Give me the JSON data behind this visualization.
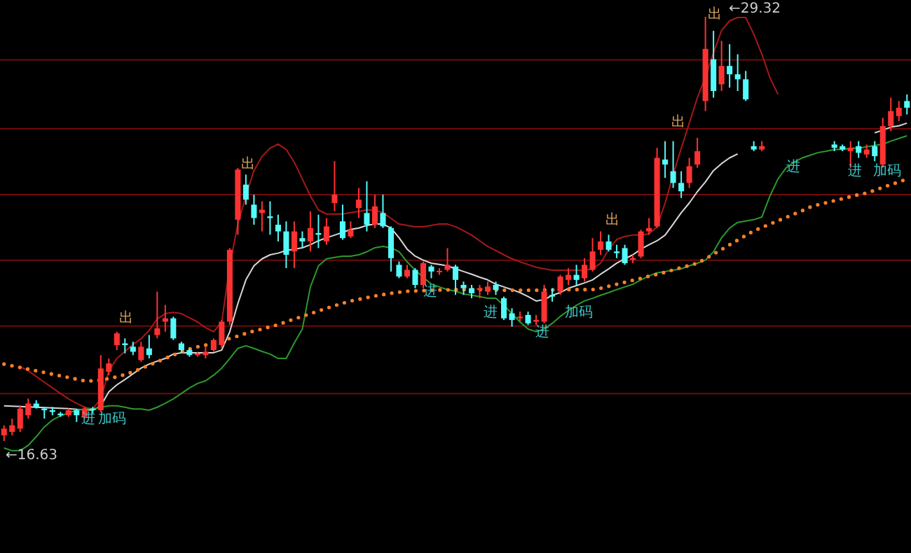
{
  "chart_data": {
    "type": "candlestick",
    "categories": [
      null,
      null,
      null,
      null,
      null,
      null,
      null,
      null,
      null,
      null,
      null,
      null,
      null,
      null,
      null,
      null,
      null,
      null,
      null,
      null,
      null,
      null,
      null,
      null,
      null,
      null,
      null,
      null,
      null,
      null,
      null,
      null,
      null,
      null,
      null,
      null,
      null,
      null,
      null,
      null,
      null,
      null,
      null,
      null,
      null,
      null,
      null,
      null,
      null,
      null,
      null,
      null,
      null,
      null,
      null,
      null,
      null,
      null,
      null,
      null,
      null,
      null,
      null,
      null,
      null,
      null,
      null,
      null,
      null,
      null,
      null,
      null,
      null,
      null,
      null,
      null,
      null,
      null,
      null,
      null,
      null,
      null,
      null,
      null,
      null,
      null,
      null,
      null,
      null,
      null,
      null,
      null,
      null,
      null,
      null,
      null,
      null,
      null,
      null,
      null,
      null,
      null,
      null,
      null,
      null,
      null,
      null,
      null,
      null,
      null,
      null,
      null,
      null
    ],
    "colors": [
      "#ff3232",
      "#ff3232",
      "#ff3232",
      "#ff3232",
      "#54fcfc",
      "#54fcfc",
      "#54fcfc",
      "#54fcfc",
      "#ff3232",
      "#54fcfc",
      "#ff3232",
      "#54fcfc",
      "#ff3232",
      "#ff3232",
      "#ff3232",
      "#54fcfc",
      "#54fcfc",
      "#ff3232",
      "#54fcfc",
      "#ff3232",
      "#ff3232",
      "#54fcfc",
      "#54fcfc",
      "#54fcfc",
      "#ff3232",
      "#ff3232",
      "#ff3232",
      "#ff3232",
      "#ff3232",
      "#ff3232",
      "#54fcfc",
      "#54fcfc",
      "#ff3232",
      "#54fcfc",
      "#54fcfc",
      "#54fcfc",
      "#ff3232",
      "#54fcfc",
      "#ff3232",
      "#54fcfc",
      "#ff3232",
      "#ff3232",
      "#54fcfc",
      "#ff3232",
      "#ff3232",
      "#54fcfc",
      "#ff3232",
      "#54fcfc",
      "#54fcfc",
      "#54fcfc",
      "#ff3232",
      "#54fcfc",
      "#ff3232",
      "#54fcfc",
      "#ff3232",
      "#ff3232",
      "#54fcfc",
      "#54fcfc",
      "#54fcfc",
      "#ff3232",
      "#ff3232",
      "#54fcfc",
      "#54fcfc",
      "#54fcfc",
      "#ff3232",
      "#54fcfc",
      "#ff3232",
      "#ff3232",
      "#54fcfc",
      "#ff3232",
      "#ff3232",
      "#54fcfc",
      "#ff3232",
      "#ff3232",
      "#ff3232",
      "#54fcfc",
      "#54fcfc",
      "#54fcfc",
      "#ff3232",
      "#ff3232",
      "#ff3232",
      "#ff3232",
      "#54fcfc",
      "#54fcfc",
      "#54fcfc",
      "#ff3232",
      "#ff3232",
      "#ff3232",
      "#54fcfc",
      "#ff3232",
      "#54fcfc",
      "#54fcfc",
      "#54fcfc",
      "#54fcfc",
      "#ff3232",
      null,
      null,
      null,
      null,
      null,
      null,
      null,
      null,
      "#54fcfc",
      "#54fcfc",
      "#ff3232",
      "#54fcfc",
      "#ff3232",
      "#54fcfc",
      "#ff3232",
      "#ff3232",
      "#ff3232",
      "#54fcfc"
    ],
    "ohlc": [
      [
        16.8,
        17.1,
        16.63,
        17.0
      ],
      [
        16.9,
        17.3,
        16.8,
        17.1
      ],
      [
        17.0,
        17.7,
        16.9,
        17.6
      ],
      [
        17.4,
        17.9,
        17.3,
        17.75
      ],
      [
        17.75,
        17.85,
        17.6,
        17.65
      ],
      [
        17.6,
        17.65,
        17.3,
        17.55
      ],
      [
        17.55,
        17.65,
        17.4,
        17.5
      ],
      [
        17.45,
        17.5,
        17.35,
        17.4
      ],
      [
        17.4,
        17.6,
        17.35,
        17.55
      ],
      [
        17.55,
        17.6,
        17.2,
        17.4
      ],
      [
        17.35,
        17.65,
        17.3,
        17.6
      ],
      [
        17.6,
        17.65,
        17.45,
        17.55
      ],
      [
        17.55,
        19.2,
        17.5,
        18.8
      ],
      [
        18.7,
        19.1,
        18.6,
        18.95
      ],
      [
        19.5,
        19.9,
        19.35,
        19.85
      ],
      [
        19.55,
        19.7,
        19.25,
        19.5
      ],
      [
        19.45,
        19.6,
        19.2,
        19.3
      ],
      [
        19.05,
        19.6,
        19.0,
        19.45
      ],
      [
        19.4,
        19.8,
        19.1,
        19.2
      ],
      [
        19.8,
        21.1,
        19.7,
        20.0
      ],
      [
        20.2,
        20.7,
        19.9,
        20.3
      ],
      [
        20.3,
        20.35,
        19.65,
        19.7
      ],
      [
        19.55,
        19.6,
        19.25,
        19.35
      ],
      [
        19.35,
        19.4,
        19.15,
        19.2
      ],
      [
        19.2,
        19.3,
        19.15,
        19.25
      ],
      [
        19.2,
        19.45,
        19.1,
        19.3
      ],
      [
        19.35,
        19.7,
        19.3,
        19.65
      ],
      [
        19.5,
        20.25,
        19.4,
        20.2
      ],
      [
        20.2,
        22.4,
        20.1,
        22.35
      ],
      [
        23.25,
        24.8,
        22.8,
        24.75
      ],
      [
        24.3,
        24.6,
        23.7,
        23.85
      ],
      [
        23.7,
        24.0,
        23.1,
        23.3
      ],
      [
        23.45,
        23.8,
        22.9,
        23.55
      ],
      [
        23.35,
        23.8,
        22.8,
        23.3
      ],
      [
        23.1,
        23.4,
        22.6,
        22.9
      ],
      [
        22.9,
        23.2,
        21.8,
        22.2
      ],
      [
        22.3,
        23.2,
        21.8,
        22.9
      ],
      [
        22.7,
        22.9,
        22.4,
        22.6
      ],
      [
        22.6,
        23.5,
        22.3,
        23.0
      ],
      [
        22.85,
        23.4,
        22.4,
        22.8
      ],
      [
        22.6,
        23.3,
        22.5,
        23.05
      ],
      [
        23.75,
        25.0,
        23.5,
        24.0
      ],
      [
        23.2,
        23.7,
        22.65,
        22.7
      ],
      [
        22.75,
        23.2,
        22.7,
        22.95
      ],
      [
        23.6,
        24.2,
        23.3,
        23.85
      ],
      [
        23.45,
        24.4,
        22.9,
        23.1
      ],
      [
        23.1,
        24.0,
        23.0,
        23.65
      ],
      [
        23.45,
        24.0,
        23.0,
        23.05
      ],
      [
        23.0,
        23.05,
        21.7,
        22.1
      ],
      [
        21.9,
        22.0,
        21.5,
        21.55
      ],
      [
        21.55,
        21.9,
        21.5,
        21.75
      ],
      [
        21.75,
        21.8,
        21.2,
        21.3
      ],
      [
        21.3,
        22.0,
        21.2,
        21.95
      ],
      [
        21.85,
        21.9,
        21.5,
        21.7
      ],
      [
        21.7,
        21.8,
        21.6,
        21.72
      ],
      [
        21.75,
        22.4,
        21.7,
        21.9
      ],
      [
        21.85,
        21.9,
        21.0,
        21.45
      ],
      [
        21.3,
        21.4,
        21.0,
        21.2
      ],
      [
        21.2,
        21.3,
        20.9,
        21.05
      ],
      [
        21.15,
        21.3,
        20.9,
        21.2
      ],
      [
        21.1,
        21.4,
        21.0,
        21.25
      ],
      [
        21.3,
        21.4,
        21.0,
        21.15
      ],
      [
        20.9,
        20.95,
        20.25,
        20.3
      ],
      [
        20.45,
        20.6,
        20.05,
        20.25
      ],
      [
        20.3,
        20.5,
        20.2,
        20.35
      ],
      [
        20.4,
        20.5,
        20.1,
        20.15
      ],
      [
        20.2,
        20.4,
        20.1,
        20.25
      ],
      [
        20.2,
        21.3,
        20.15,
        21.1
      ],
      [
        21.0,
        21.2,
        20.8,
        20.95
      ],
      [
        21.1,
        21.6,
        21.0,
        21.55
      ],
      [
        21.45,
        21.8,
        21.3,
        21.6
      ],
      [
        21.6,
        21.9,
        21.3,
        21.45
      ],
      [
        21.5,
        22.1,
        21.4,
        21.9
      ],
      [
        21.75,
        22.7,
        21.7,
        22.3
      ],
      [
        22.35,
        22.9,
        22.2,
        22.6
      ],
      [
        22.6,
        22.8,
        22.3,
        22.35
      ],
      [
        22.3,
        22.5,
        22.1,
        22.25
      ],
      [
        22.4,
        22.5,
        21.9,
        21.95
      ],
      [
        22.05,
        22.2,
        21.95,
        22.1
      ],
      [
        22.15,
        22.95,
        22.1,
        22.9
      ],
      [
        22.9,
        23.3,
        22.8,
        23.0
      ],
      [
        23.05,
        25.4,
        23.0,
        25.1
      ],
      [
        25.05,
        25.6,
        24.5,
        24.9
      ],
      [
        24.7,
        25.6,
        24.2,
        24.35
      ],
      [
        24.35,
        24.7,
        23.9,
        24.1
      ],
      [
        24.35,
        25.1,
        24.2,
        24.85
      ],
      [
        24.9,
        25.7,
        24.8,
        25.3
      ],
      [
        26.8,
        29.32,
        26.5,
        28.36
      ],
      [
        28.05,
        28.9,
        26.9,
        27.1
      ],
      [
        27.3,
        28.6,
        27.1,
        27.85
      ],
      [
        27.85,
        28.5,
        27.2,
        27.6
      ],
      [
        27.6,
        28.2,
        27.1,
        27.45
      ],
      [
        27.45,
        27.7,
        26.8,
        26.85
      ],
      [
        25.45,
        25.6,
        25.3,
        25.35
      ],
      [
        25.35,
        25.6,
        25.3,
        25.45
      ],
      null,
      null,
      null,
      null,
      null,
      null,
      null,
      null,
      [
        25.5,
        25.6,
        25.3,
        25.4
      ],
      [
        25.45,
        25.5,
        25.3,
        25.35
      ],
      [
        25.3,
        25.6,
        24.8,
        25.4
      ],
      [
        25.45,
        25.6,
        25.1,
        25.25
      ],
      [
        25.2,
        25.5,
        25.1,
        25.35
      ],
      [
        25.45,
        25.6,
        25.0,
        25.15
      ],
      [
        24.9,
        26.3,
        24.8,
        26.05
      ],
      [
        26.05,
        26.9,
        25.9,
        26.5
      ],
      [
        26.35,
        26.8,
        26.2,
        26.6
      ],
      [
        26.8,
        27.0,
        26.4,
        26.6
      ]
    ],
    "series": [
      {
        "type": "line",
        "color": "#d8d8d8",
        "values": [
          17.68,
          17.67,
          17.66,
          17.65,
          17.64,
          17.63,
          17.62,
          17.61,
          17.6,
          17.58,
          17.57,
          17.55,
          17.68,
          18.1,
          18.31,
          18.47,
          18.64,
          18.81,
          18.93,
          19.02,
          19.1,
          19.23,
          19.27,
          19.27,
          19.27,
          19.27,
          19.27,
          19.35,
          19.9,
          20.74,
          21.45,
          21.87,
          22.08,
          22.2,
          22.25,
          22.33,
          22.37,
          22.41,
          22.5,
          22.62,
          22.71,
          22.79,
          22.87,
          22.96,
          23.0,
          23.08,
          23.12,
          23.12,
          23.0,
          22.71,
          22.37,
          22.16,
          22.04,
          21.95,
          21.91,
          21.87,
          21.78,
          21.7,
          21.62,
          21.53,
          21.45,
          21.32,
          21.24,
          21.16,
          21.07,
          20.95,
          20.82,
          20.86,
          20.99,
          21.07,
          21.2,
          21.28,
          21.36,
          21.45,
          21.62,
          21.78,
          21.95,
          22.08,
          22.2,
          22.37,
          22.5,
          22.62,
          22.79,
          23.12,
          23.46,
          23.75,
          24.09,
          24.38,
          24.72,
          24.93,
          25.1,
          25.22,
          null,
          null,
          null,
          null,
          null,
          null,
          null,
          null,
          null,
          null,
          null,
          null,
          null,
          null,
          null,
          null,
          25.85,
          25.93,
          26.02,
          26.06,
          26.14
        ]
      },
      {
        "type": "line",
        "color": "#a81818",
        "values": [
          null,
          null,
          18.85,
          18.73,
          18.56,
          18.39,
          18.22,
          18.05,
          17.89,
          17.76,
          17.64,
          17.59,
          17.89,
          18.73,
          19.1,
          19.31,
          19.52,
          19.69,
          19.94,
          20.28,
          20.44,
          20.48,
          20.44,
          20.32,
          20.19,
          20.02,
          19.9,
          20.19,
          21.87,
          23.12,
          23.96,
          24.72,
          25.14,
          25.39,
          25.51,
          25.35,
          24.97,
          24.47,
          23.96,
          23.54,
          23.42,
          23.42,
          23.42,
          23.46,
          23.5,
          23.54,
          23.54,
          23.46,
          23.29,
          23.12,
          23.08,
          23.04,
          23.04,
          23.08,
          23.12,
          23.12,
          23.04,
          22.92,
          22.79,
          22.62,
          22.45,
          22.33,
          22.2,
          22.08,
          21.99,
          21.91,
          21.83,
          21.78,
          21.74,
          21.74,
          21.74,
          21.74,
          21.74,
          21.78,
          21.95,
          22.37,
          22.66,
          22.75,
          22.79,
          22.79,
          22.83,
          23.04,
          23.75,
          24.59,
          25.39,
          26.14,
          26.9,
          27.52,
          28.24,
          28.91,
          29.2,
          29.3,
          29.3,
          28.8,
          28.2,
          27.5,
          27.0,
          null,
          null,
          null,
          null,
          null,
          null,
          null,
          null,
          null,
          null,
          null,
          null,
          null,
          null,
          null,
          null
        ]
      },
      {
        "type": "line",
        "color": "#2c9a2c",
        "values": [
          16.42,
          16.34,
          16.34,
          16.5,
          16.76,
          17.05,
          17.26,
          17.38,
          17.47,
          17.55,
          17.59,
          17.59,
          17.64,
          17.68,
          17.68,
          17.64,
          17.59,
          17.59,
          17.55,
          17.64,
          17.76,
          17.89,
          18.05,
          18.22,
          18.35,
          18.43,
          18.6,
          18.81,
          19.1,
          19.4,
          19.48,
          19.4,
          19.31,
          19.23,
          19.1,
          19.1,
          19.56,
          19.98,
          21.24,
          21.87,
          22.08,
          22.12,
          22.16,
          22.16,
          22.2,
          22.29,
          22.41,
          22.45,
          22.41,
          22.29,
          21.99,
          21.74,
          21.53,
          21.32,
          21.24,
          21.16,
          21.11,
          21.03,
          20.99,
          20.95,
          20.9,
          20.9,
          20.69,
          20.44,
          20.19,
          19.98,
          19.9,
          19.98,
          20.15,
          20.36,
          20.53,
          20.69,
          20.82,
          20.9,
          20.99,
          21.07,
          21.16,
          21.24,
          21.32,
          21.45,
          21.57,
          21.66,
          21.7,
          21.74,
          21.78,
          21.87,
          21.95,
          22.04,
          22.29,
          22.71,
          23.0,
          23.17,
          23.21,
          23.25,
          23.33,
          23.96,
          24.47,
          24.8,
          24.97,
          25.1,
          25.18,
          25.26,
          25.3,
          25.35,
          25.35,
          25.39,
          25.39,
          25.43,
          25.47,
          25.51,
          25.6,
          25.68,
          25.76
        ]
      },
      {
        "type": "line",
        "color": "#ff7f27",
        "line_style": "dotted",
        "values": [
          18.93,
          18.88,
          18.83,
          18.78,
          18.73,
          18.68,
          18.63,
          18.58,
          18.53,
          18.48,
          18.43,
          18.43,
          18.45,
          18.5,
          18.55,
          18.62,
          18.7,
          18.8,
          18.9,
          19.0,
          19.1,
          19.2,
          19.3,
          19.38,
          19.45,
          19.5,
          19.55,
          19.62,
          19.7,
          19.77,
          19.85,
          19.92,
          19.98,
          20.05,
          20.11,
          20.2,
          20.28,
          20.36,
          20.44,
          20.52,
          20.6,
          20.68,
          20.75,
          20.82,
          20.87,
          20.92,
          20.97,
          21.01,
          21.05,
          21.08,
          21.11,
          21.12,
          21.13,
          21.14,
          21.15,
          21.15,
          21.16,
          21.16,
          21.16,
          21.16,
          21.15,
          21.15,
          21.14,
          21.14,
          21.14,
          21.14,
          21.14,
          21.15,
          21.15,
          21.15,
          21.16,
          21.16,
          21.16,
          21.16,
          21.2,
          21.26,
          21.32,
          21.38,
          21.44,
          21.5,
          21.56,
          21.62,
          21.68,
          21.75,
          21.82,
          21.88,
          21.95,
          22.08,
          22.22,
          22.36,
          22.5,
          22.64,
          22.78,
          22.92,
          23.02,
          23.12,
          23.22,
          23.32,
          23.42,
          23.52,
          23.63,
          23.7,
          23.76,
          23.82,
          23.88,
          23.94,
          24.0,
          24.05,
          24.13,
          24.22,
          24.3,
          24.38,
          24.47
        ]
      }
    ],
    "yticks": [
      {
        "value": 18.05,
        "label": null
      },
      {
        "value": 20.07,
        "label": null
      },
      {
        "value": 22.04,
        "label": null
      },
      {
        "value": 24.0,
        "label": null
      },
      {
        "value": 25.97,
        "label": null
      },
      {
        "value": 28.03,
        "label": null
      }
    ],
    "grid": "y",
    "annotations": [
      "出",
      "出",
      "进",
      "加码",
      "←16.63",
      "出",
      "出",
      "出",
      "←29.32",
      "进",
      "进",
      "加码",
      "进",
      "进",
      "进",
      "加码"
    ]
  }
}
